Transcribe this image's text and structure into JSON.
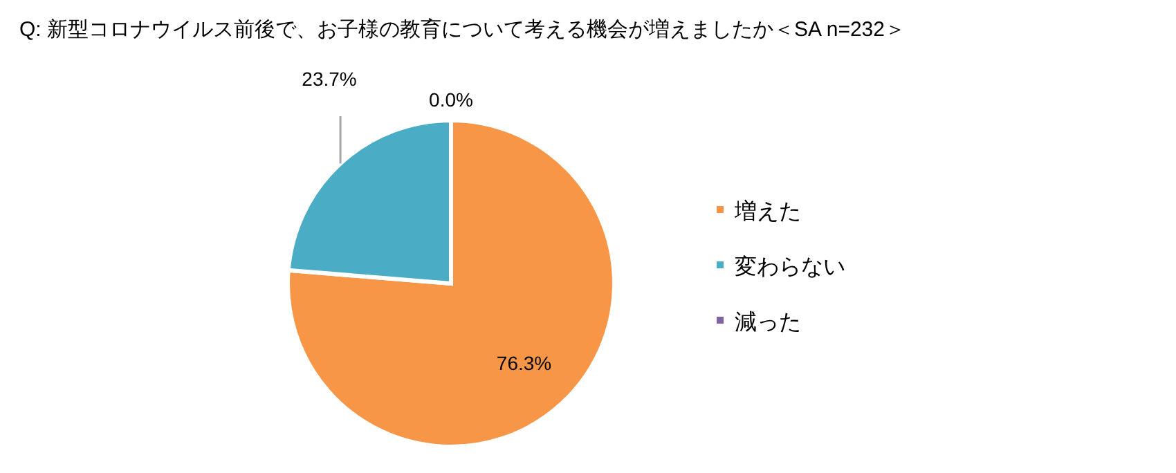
{
  "chart_data": {
    "type": "pie",
    "title": "Q:  新型コロナウイルス前後で、お子様の教育について考える機会が増えましたか＜SA n=232＞",
    "categories": [
      "増えた",
      "変わらない",
      "減った"
    ],
    "values": [
      76.3,
      23.7,
      0.0
    ],
    "colors": [
      "#f79646",
      "#4bacc6",
      "#8064a2"
    ],
    "value_labels": [
      "76.3%",
      "23.7%",
      "0.0%"
    ],
    "legend": "right"
  }
}
